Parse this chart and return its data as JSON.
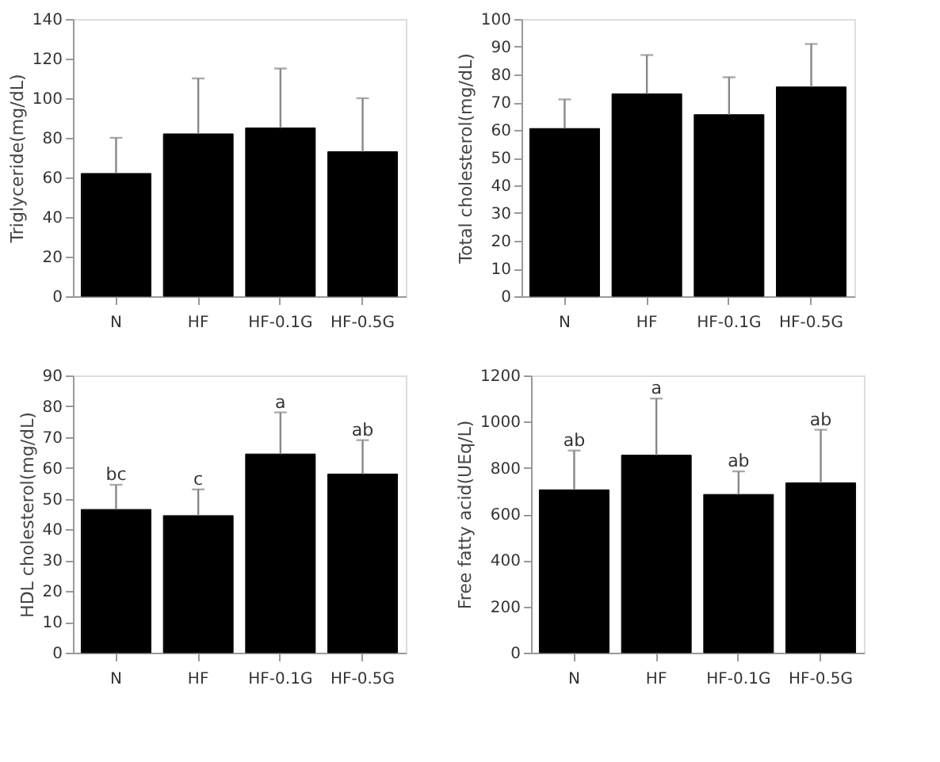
{
  "chart_data": [
    {
      "type": "bar",
      "ylabel": "Triglyceride(mg/dL)",
      "categories": [
        "N",
        "HF",
        "HF-0.1G",
        "HF-0.5G"
      ],
      "values": [
        62,
        82,
        85,
        73
      ],
      "colors": [
        "#000000",
        "#000000",
        "#000000",
        "#000000"
      ],
      "errors": [
        [
          62,
          80
        ],
        [
          82,
          110
        ],
        [
          85,
          115
        ],
        [
          73,
          100
        ]
      ],
      "ylim": [
        0,
        140
      ],
      "yticks": [
        0,
        20,
        40,
        60,
        80,
        100,
        120,
        140
      ],
      "grid": false
    },
    {
      "type": "bar",
      "ylabel": "Total cholesterol(mg/dL)",
      "categories": [
        "N",
        "HF",
        "HF-0.1G",
        "HF-0.5G"
      ],
      "values": [
        60.5,
        73,
        65.5,
        75.5
      ],
      "colors": [
        "#000000",
        "#000000",
        "#000000",
        "#000000"
      ],
      "errors": [
        [
          60.5,
          71
        ],
        [
          73,
          87
        ],
        [
          65.5,
          79
        ],
        [
          75.5,
          91
        ]
      ],
      "ylim": [
        0,
        100
      ],
      "yticks": [
        0,
        10,
        20,
        30,
        40,
        50,
        60,
        70,
        80,
        90,
        100
      ],
      "grid": false
    },
    {
      "type": "bar",
      "ylabel": "HDL cholesterol(mg/dL)",
      "categories": [
        "N",
        "HF",
        "HF-0.1G",
        "HF-0.5G"
      ],
      "values": [
        46.5,
        44.5,
        64.5,
        58
      ],
      "colors": [
        "#000000",
        "#000000",
        "#000000",
        "#000000"
      ],
      "errors": [
        [
          46.5,
          54.5
        ],
        [
          44.5,
          53
        ],
        [
          64.5,
          78
        ],
        [
          58,
          69
        ]
      ],
      "ylim": [
        0,
        90
      ],
      "yticks": [
        0,
        10,
        20,
        30,
        40,
        50,
        60,
        70,
        80,
        90
      ],
      "grid": false,
      "annotations": [
        {
          "text": "bc",
          "x": "N",
          "y": 54.5
        },
        {
          "text": "c",
          "x": "HF",
          "y": 53
        },
        {
          "text": "a",
          "x": "HF-0.1G",
          "y": 78
        },
        {
          "text": "ab",
          "x": "HF-0.5G",
          "y": 69
        }
      ]
    },
    {
      "type": "bar",
      "ylabel": "Free fatty acid(UEq/L)",
      "categories": [
        "N",
        "HF",
        "HF-0.1G",
        "HF-0.5G"
      ],
      "values": [
        705,
        855,
        685,
        735
      ],
      "colors": [
        "#000000",
        "#000000",
        "#000000",
        "#000000"
      ],
      "errors": [
        [
          705,
          875
        ],
        [
          855,
          1100
        ],
        [
          685,
          785
        ],
        [
          735,
          965
        ]
      ],
      "ylim": [
        0,
        1200
      ],
      "yticks": [
        0,
        200,
        400,
        600,
        800,
        1000,
        1200
      ],
      "grid": false,
      "annotations": [
        {
          "text": "ab",
          "x": "N",
          "y": 875
        },
        {
          "text": "a",
          "x": "HF",
          "y": 1100
        },
        {
          "text": "ab",
          "x": "HF-0.1G",
          "y": 785
        },
        {
          "text": "ab",
          "x": "HF-0.5G",
          "y": 965
        }
      ]
    }
  ]
}
